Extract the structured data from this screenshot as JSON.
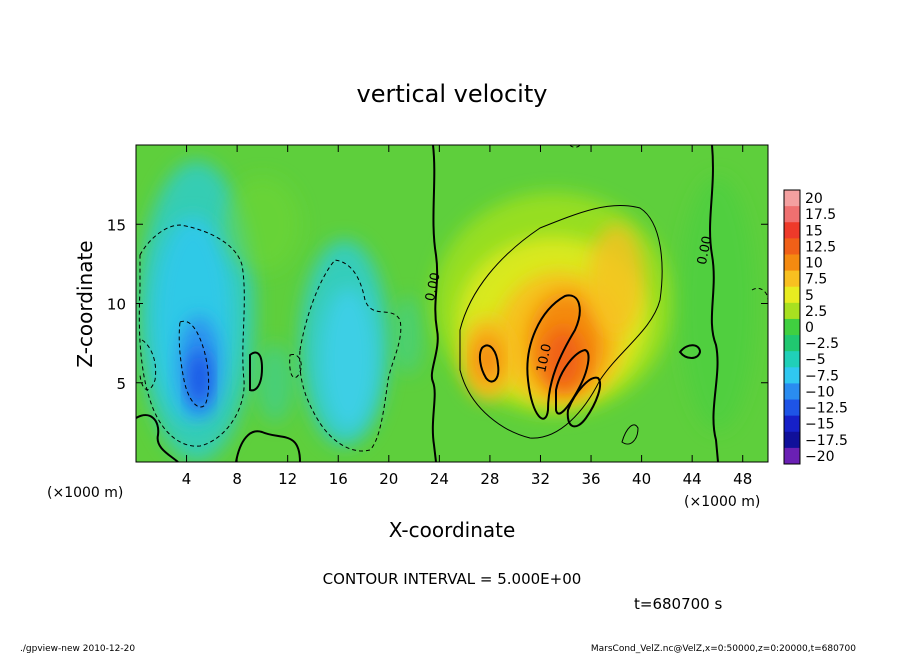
{
  "chart_data": {
    "type": "heatmap",
    "title": "vertical velocity",
    "xlabel": "X-coordinate",
    "ylabel": "Z-coordinate",
    "x_unit_label": "(×1000 m)",
    "y_unit_label": "(×1000 m)",
    "xlim": [
      0,
      50
    ],
    "ylim": [
      0,
      20
    ],
    "x_ticks": [
      4,
      8,
      12,
      16,
      20,
      24,
      28,
      32,
      36,
      40,
      44,
      48
    ],
    "y_ticks": [
      5,
      10,
      15
    ],
    "contour_interval_text": "CONTOUR INTERVAL = 5.000E+00",
    "time_text": "t=680700 s",
    "contour_labels": [
      {
        "text": "0.00",
        "x": 23.8,
        "z": 11.0
      },
      {
        "text": "10.0",
        "x": 32.6,
        "z": 6.5
      },
      {
        "text": "0.00",
        "x": 45.3,
        "z": 13.3
      }
    ],
    "colorbar": {
      "labels": [
        "20",
        "17.5",
        "15",
        "12.5",
        "10",
        "7.5",
        "5",
        "2.5",
        "0",
        "−2.5",
        "−5",
        "−7.5",
        "−10",
        "−12.5",
        "−15",
        "−17.5",
        "−20"
      ],
      "colors": [
        "#f4a0a0",
        "#ef7070",
        "#ee3a2a",
        "#f06018",
        "#f48a10",
        "#f8c020",
        "#e8ec20",
        "#a8e020",
        "#40d040",
        "#20c870",
        "#20d0b8",
        "#30c8f0",
        "#2a8cf0",
        "#1e54e6",
        "#1620c8",
        "#10109a",
        "#6a20b4"
      ]
    },
    "features": [
      {
        "kind": "updraft",
        "x": 33.5,
        "z": 8.0,
        "peak": 12.5
      },
      {
        "kind": "updraft",
        "x": 27.8,
        "z": 6.5,
        "peak": 10
      },
      {
        "kind": "downdraft",
        "x": 5.0,
        "z": 5.5,
        "peak": -10
      },
      {
        "kind": "downdraft",
        "x": 4.0,
        "z": 10.0,
        "peak": -7.5
      },
      {
        "kind": "downdraft",
        "x": 16.5,
        "z": 7.0,
        "peak": -5
      }
    ]
  },
  "footer": {
    "left": "./gpview-new  2010-12-20",
    "right": "MarsCond_VelZ.nc@VelZ,x=0:50000,z=0:20000,t=680700"
  },
  "colors": {
    "background_green": "#60d040"
  }
}
